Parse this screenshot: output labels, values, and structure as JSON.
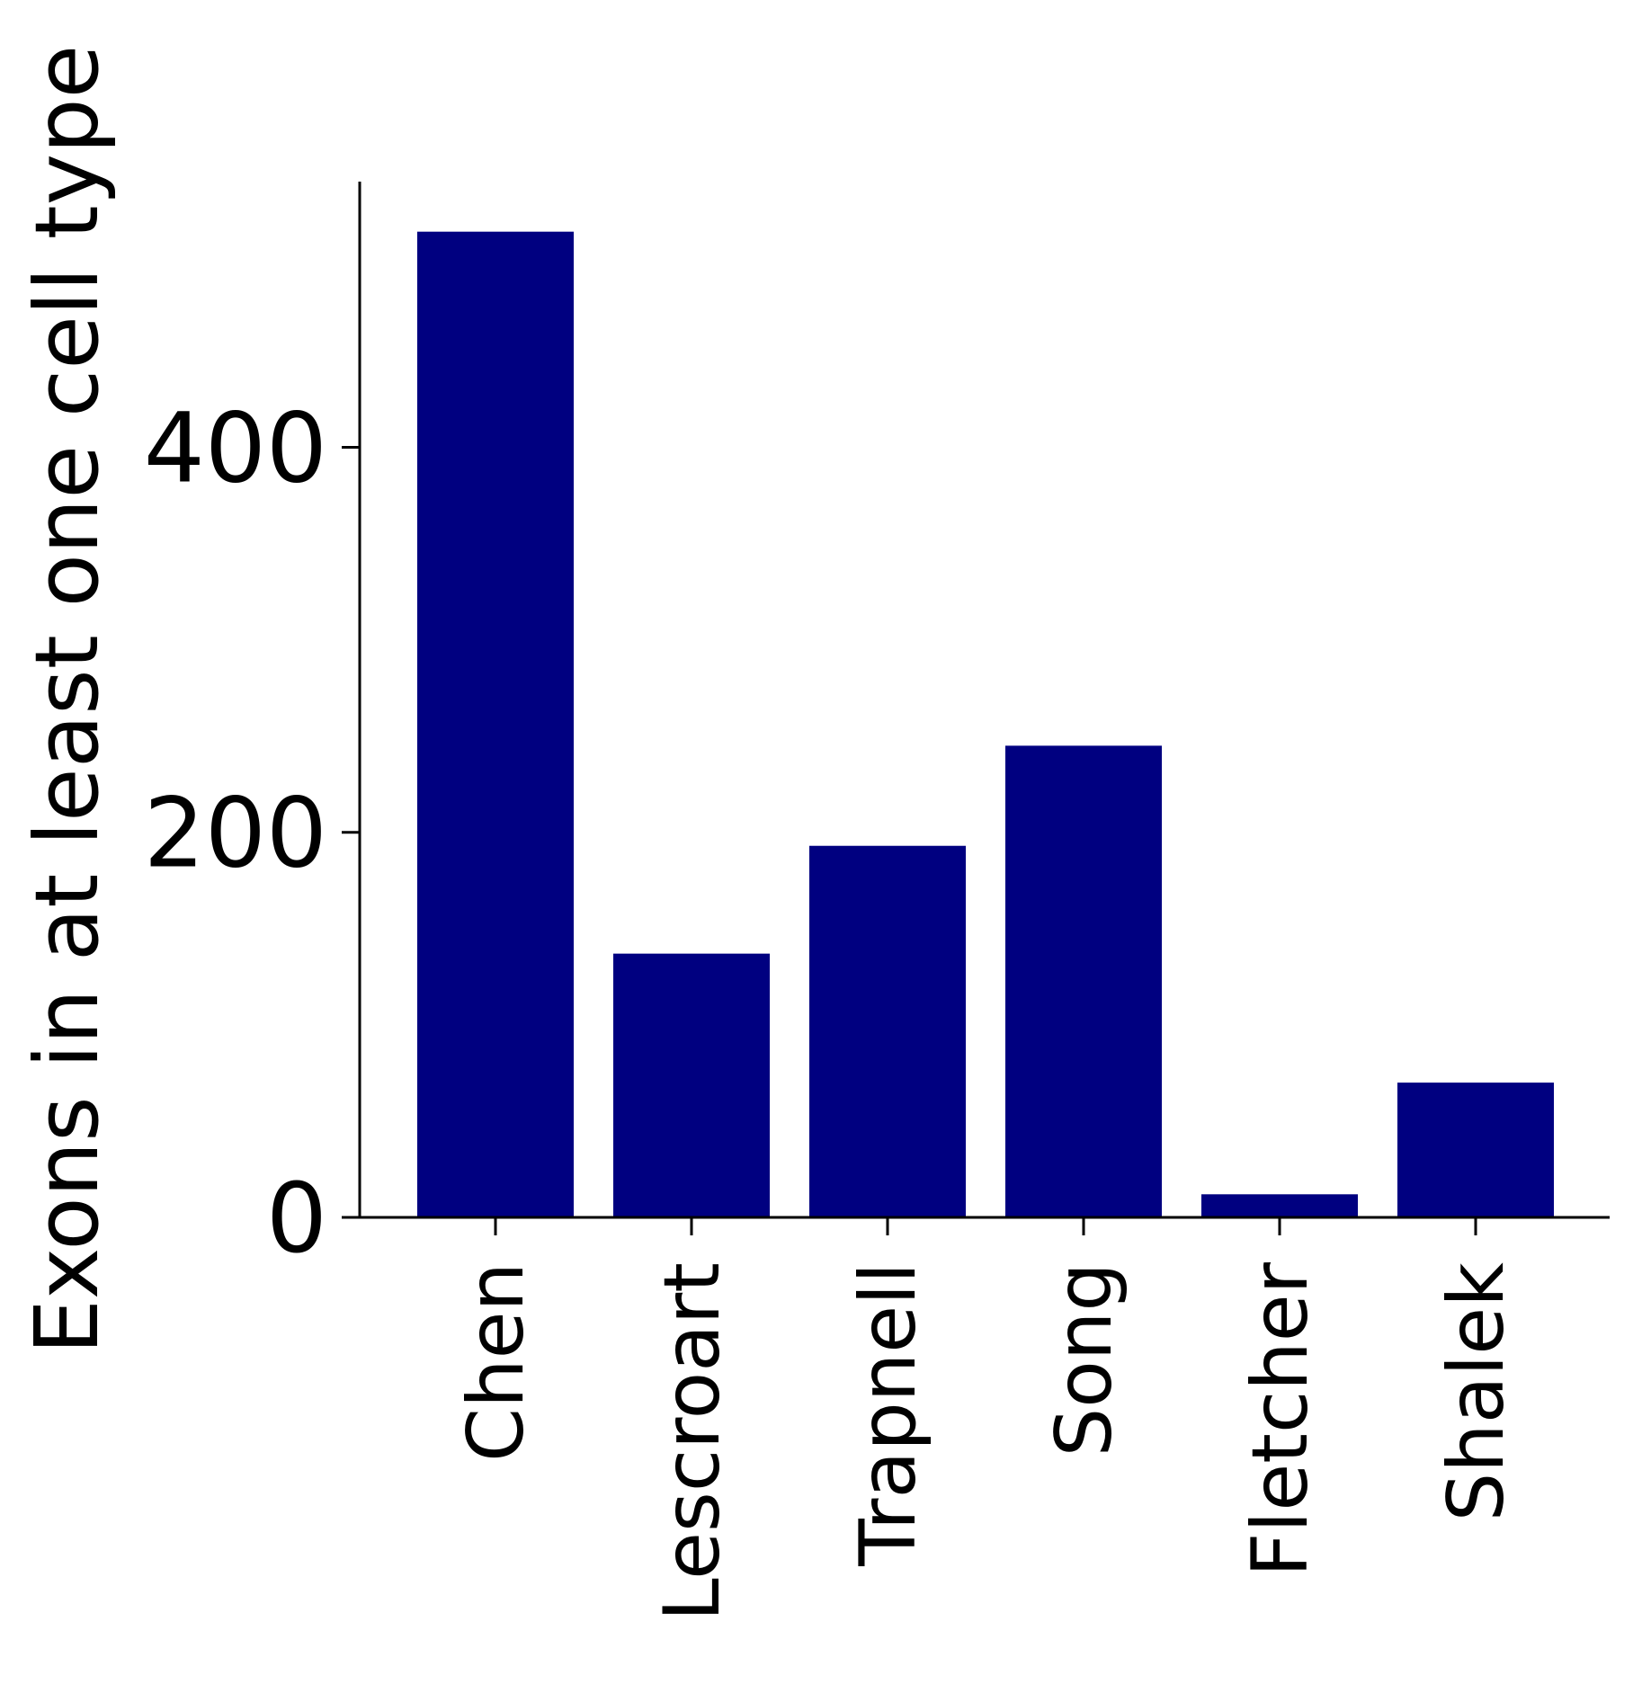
{
  "chart_data": {
    "type": "bar",
    "title": "",
    "xlabel": "",
    "ylabel": "Exons in at least one cell type",
    "categories": [
      "Chen",
      "Lescroart",
      "Trapnell",
      "Song",
      "Fletcher",
      "Shalek"
    ],
    "values": [
      512,
      137,
      193,
      245,
      12,
      70
    ],
    "ylim": [
      0,
      538
    ],
    "yticks": [
      0,
      200,
      400
    ],
    "bar_color": "#000080",
    "grid": false,
    "legend": "none"
  }
}
